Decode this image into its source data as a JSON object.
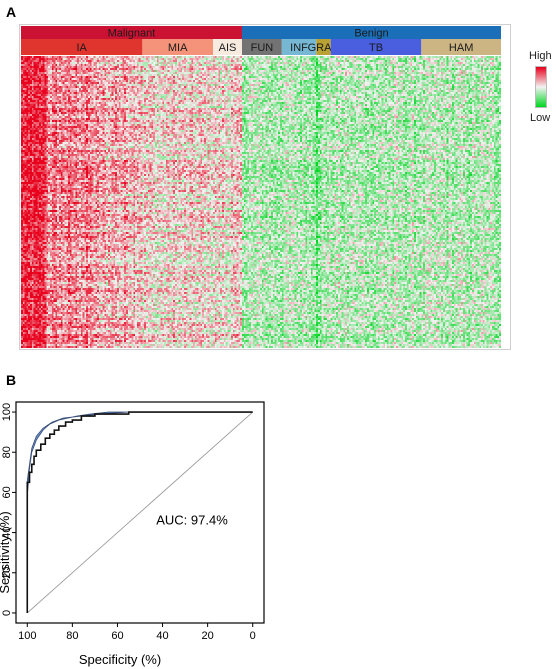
{
  "panel_a": {
    "label": "A",
    "legend": {
      "high": "High",
      "low": "Low",
      "colors": {
        "high": "#e8001c",
        "mid": "#f2f2f2",
        "low": "#00d620"
      }
    },
    "top_groups": [
      {
        "name": "Malignant",
        "color": "#cc1233",
        "columns": 122
      },
      {
        "name": "Benign",
        "color": "#1a6fb8",
        "columns": 143
      }
    ],
    "subgroups": [
      {
        "name": "IA",
        "color": "#e0342f",
        "columns": 67
      },
      {
        "name": "MIA",
        "color": "#f4927a",
        "columns": 39
      },
      {
        "name": "AIS",
        "color": "#f7ebe0",
        "columns": 16
      },
      {
        "name": "FUN",
        "color": "#737373",
        "columns": 22
      },
      {
        "name": "INF",
        "color": "#76b8d4",
        "columns": 19
      },
      {
        "name": "GRAN",
        "color": "#b9a133",
        "columns": 8
      },
      {
        "name": "TB",
        "color": "#4a5ee0",
        "columns": 50
      },
      {
        "name": "HAM",
        "color": "#cdb483",
        "columns": 44
      }
    ]
  },
  "panel_b": {
    "label": "B",
    "auc_label": "AUC: 97.4%",
    "xlabel": "Specificity (%)",
    "ylabel": "Sensitivity (%)",
    "band_color": "#6b8fca",
    "chart_data": {
      "type": "line",
      "title": "",
      "xlabel": "Specificity (%)",
      "ylabel": "Sensitivity (%)",
      "xlim": [
        100,
        0
      ],
      "ylim": [
        0,
        100
      ],
      "x_ticks": [
        100,
        80,
        60,
        40,
        20,
        0
      ],
      "y_ticks": [
        0,
        20,
        40,
        60,
        80,
        100
      ],
      "auc": 97.4,
      "series": [
        {
          "values_specificity": [
            100,
            100,
            100,
            99,
            99,
            98,
            98,
            97,
            97,
            96,
            96,
            94,
            94,
            92,
            92,
            90,
            90,
            88,
            88,
            86,
            86,
            83,
            83,
            80,
            80,
            76,
            76,
            70,
            70,
            55,
            55,
            0
          ],
          "values_sensitivity": [
            0,
            60,
            65,
            65,
            70,
            70,
            74,
            74,
            78,
            78,
            81,
            81,
            84,
            84,
            87,
            87,
            89,
            89,
            91,
            91,
            93,
            93,
            95,
            95,
            96,
            96,
            98,
            98,
            99,
            99,
            100,
            100
          ]
        }
      ],
      "ci_band": {
        "upper": {
          "specificity": [
            100,
            99,
            98,
            96,
            93,
            90,
            86,
            82,
            78,
            72,
            64,
            55
          ],
          "sensitivity": [
            58,
            72,
            80,
            86,
            91,
            94,
            96,
            97,
            98,
            99,
            100,
            100
          ]
        },
        "lower": {
          "specificity": [
            100,
            100,
            99,
            98,
            96,
            93,
            89,
            84,
            76,
            68,
            55
          ],
          "sensitivity": [
            58,
            66,
            74,
            82,
            88,
            92,
            95,
            97,
            98,
            99,
            100
          ]
        }
      },
      "reference_line": {
        "from": [
          100,
          0
        ],
        "to": [
          0,
          100
        ]
      }
    }
  }
}
